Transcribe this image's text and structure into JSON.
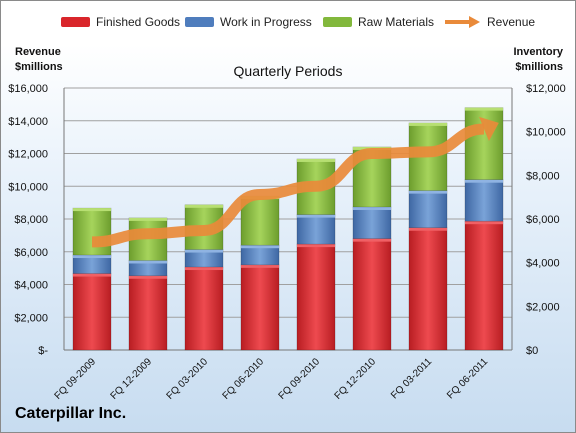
{
  "legend": {
    "finished": "Finished Goods",
    "wip": "Work in Progress",
    "raw": "Raw Materials",
    "revenue": "Revenue"
  },
  "left_title": {
    "line1": "Revenue",
    "line2": "$millions"
  },
  "right_title": {
    "line1": "Inventory",
    "line2": "$millions"
  },
  "company": "Caterpillar Inc.",
  "colors": {
    "finished": "#d9262b",
    "wip": "#4f7dbd",
    "raw": "#82b83c",
    "revenue": "#e98a3a"
  },
  "chart_data": {
    "type": "bar",
    "title": "Quarterly Periods",
    "categories": [
      "FQ 09-2009",
      "FQ 12-2009",
      "FQ 03-2010",
      "FQ 06-2010",
      "FQ 09-2010",
      "FQ 12-2010",
      "FQ 03-2011",
      "FQ 06-2011"
    ],
    "stacked": true,
    "series": [
      {
        "name": "Finished Goods",
        "axis": "right",
        "values": [
          3500,
          3400,
          3800,
          3900,
          4850,
          5100,
          5600,
          5900
        ]
      },
      {
        "name": "Work in Progress",
        "axis": "right",
        "values": [
          850,
          700,
          800,
          900,
          1350,
          1450,
          1700,
          1900
        ]
      },
      {
        "name": "Raw Materials",
        "axis": "right",
        "values": [
          2150,
          1950,
          2050,
          2250,
          2550,
          2750,
          3100,
          3300
        ]
      },
      {
        "name": "Revenue",
        "type": "line",
        "axis": "left",
        "values": [
          6600,
          7100,
          7300,
          9500,
          10000,
          12000,
          12100,
          13500
        ]
      }
    ],
    "left_axis": {
      "ylim": [
        0,
        16000
      ],
      "ticks": [
        "$-",
        "$2,000",
        "$4,000",
        "$6,000",
        "$8,000",
        "$10,000",
        "$12,000",
        "$14,000",
        "$16,000"
      ]
    },
    "right_axis": {
      "ylim": [
        0,
        12000
      ],
      "ticks": [
        "$0",
        "$2,000",
        "$4,000",
        "$6,000",
        "$8,000",
        "$10,000",
        "$12,000"
      ]
    },
    "grid": "horizontal",
    "legend_position": "top"
  }
}
